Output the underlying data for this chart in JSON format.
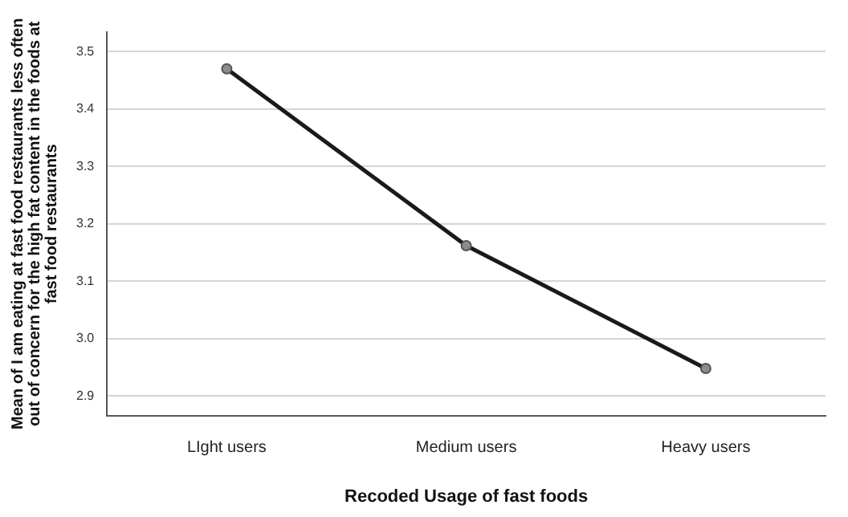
{
  "chart_data": {
    "type": "line",
    "xlabel": "Recoded Usage of fast foods",
    "ylabel": "Mean of I am eating at fast food restaurants less often out of concern for the high fat content in the foods at fast food restaurants",
    "categories": [
      "LIght users",
      "Medium users",
      "Heavy users"
    ],
    "series": [
      {
        "color": "#1a1a1a",
        "values": [
          3.47,
          3.162,
          2.948
        ]
      }
    ],
    "ylim": [
      2.866,
      3.534
    ],
    "yticks": [
      2.9,
      {
        "value": 3,
        "label": "3.0"
      },
      3.1,
      3.2,
      3.3,
      3.4,
      3.5
    ],
    "grid": "y",
    "marker": "circle",
    "line_style": "solid",
    "legend": false
  }
}
